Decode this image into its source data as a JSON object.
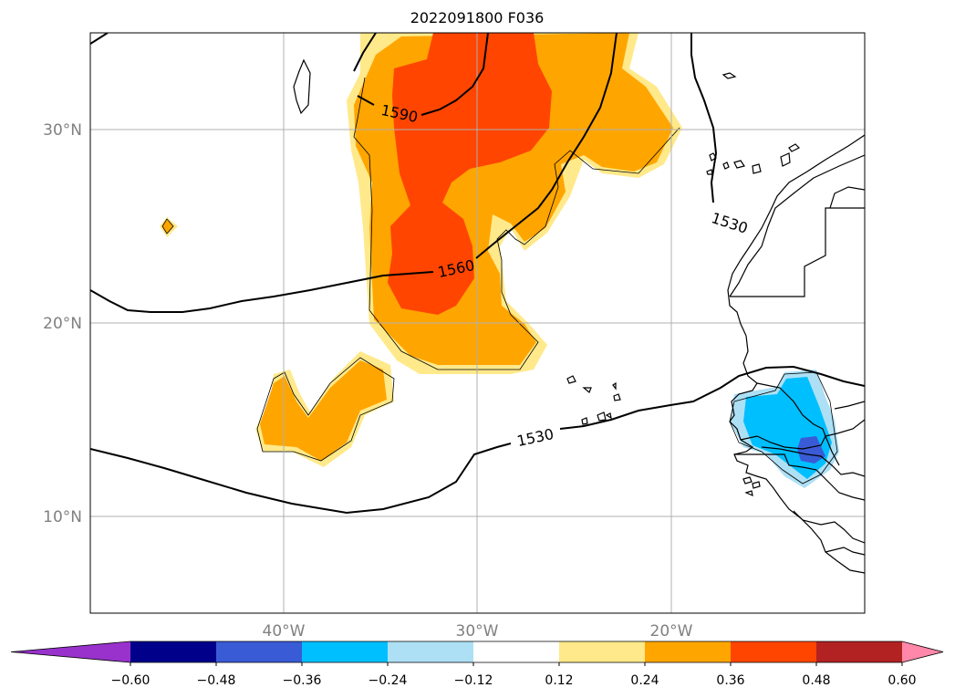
{
  "title": "2022091800 F036",
  "map": {
    "lat_labels": [
      "30°N",
      "20°N",
      "10°N"
    ],
    "lon_labels": [
      "40°W",
      "30°W",
      "20°W"
    ],
    "contour_labels": [
      "1590",
      "1560",
      "1530",
      "1530"
    ]
  },
  "colorbar": {
    "ticks": [
      "−0.60",
      "−0.48",
      "−0.36",
      "−0.24",
      "−0.12",
      "0.12",
      "0.24",
      "0.36",
      "0.48",
      "0.60"
    ],
    "colors": [
      "#9932CC",
      "#00008B",
      "#3A5BD6",
      "#00BFFF",
      "#ADE0F5",
      "#FFFFFF",
      "#FFE98A",
      "#FFA500",
      "#FF4500",
      "#B22222",
      "#FF88AA"
    ]
  }
}
